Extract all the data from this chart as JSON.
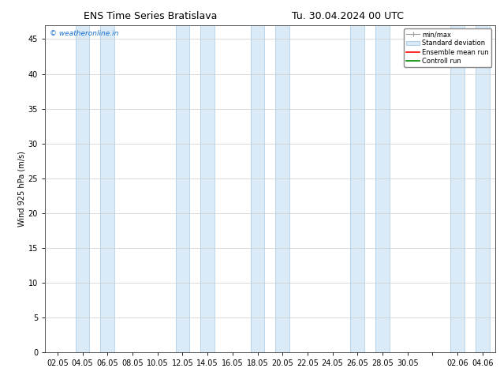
{
  "title_left": "ENS Time Series Bratislava",
  "title_right": "Tu. 30.04.2024 00 UTC",
  "ylabel": "Wind 925 hPa (m/s)",
  "watermark": "© weatheronline.in",
  "watermark_color": "#1a6fcc",
  "ylim": [
    0,
    47
  ],
  "yticks": [
    0,
    5,
    10,
    15,
    20,
    25,
    30,
    35,
    40,
    45
  ],
  "xtick_labels": [
    "02.05",
    "04.05",
    "06.05",
    "08.05",
    "10.05",
    "12.05",
    "14.05",
    "16.05",
    "18.05",
    "20.05",
    "22.05",
    "24.05",
    "26.05",
    "28.05",
    "30.05",
    "",
    "02.06",
    "04.06"
  ],
  "bg_color": "#ffffff",
  "plot_bg_color": "#ffffff",
  "band_color": "#daeaf6",
  "band_edge_color": "#b0cfe8",
  "legend_labels": [
    "min/max",
    "Standard deviation",
    "Ensemble mean run",
    "Controll run"
  ],
  "legend_colors_line": [
    "#999999",
    "#b0cfe8",
    "#ff0000",
    "#008800"
  ],
  "title_fontsize": 9,
  "axis_fontsize": 7,
  "ylabel_fontsize": 7
}
